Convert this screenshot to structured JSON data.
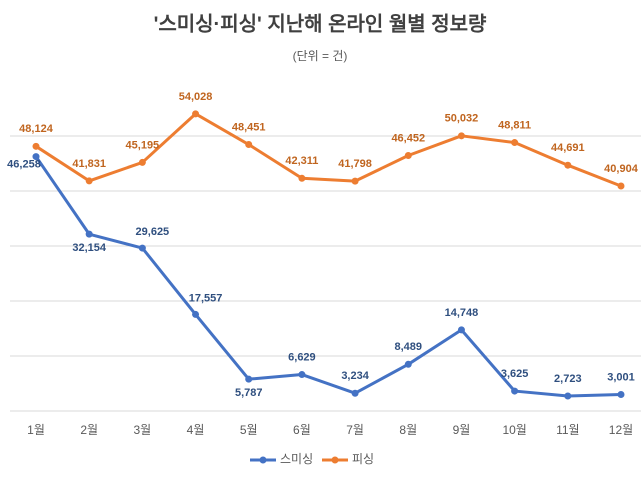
{
  "chart_data": {
    "type": "line",
    "title": "'스미싱·피싱' 지난해 온라인 월별 정보량",
    "subtitle": "(단위 = 건)",
    "categories": [
      "1월",
      "2월",
      "3월",
      "4월",
      "5월",
      "6월",
      "7월",
      "8월",
      "9월",
      "10월",
      "11월",
      "12월"
    ],
    "series": [
      {
        "name": "스미싱",
        "color": "#4472c4",
        "values": [
          46258,
          32154,
          29625,
          17557,
          5787,
          6629,
          3234,
          8489,
          14748,
          3625,
          2723,
          3001
        ],
        "value_labels": [
          "46,258",
          "32,154",
          "29,625",
          "17,557",
          "5,787",
          "6,629",
          "3,234",
          "8,489",
          "14,748",
          "3,625",
          "2,723",
          "3,001"
        ]
      },
      {
        "name": "피싱",
        "color": "#ed7d31",
        "values": [
          48124,
          41831,
          45195,
          54028,
          48451,
          42311,
          41798,
          46452,
          50032,
          48811,
          44691,
          40904
        ],
        "value_labels": [
          "48,124",
          "41,831",
          "45,195",
          "54,028",
          "48,451",
          "42,311",
          "41,798",
          "46,452",
          "50,032",
          "48,811",
          "44,691",
          "40,904"
        ]
      }
    ],
    "ylim": [
      0,
      60000
    ],
    "yticks": [
      0,
      10000,
      20000,
      30000,
      40000,
      50000
    ],
    "grid": true,
    "legend": "bottom"
  }
}
